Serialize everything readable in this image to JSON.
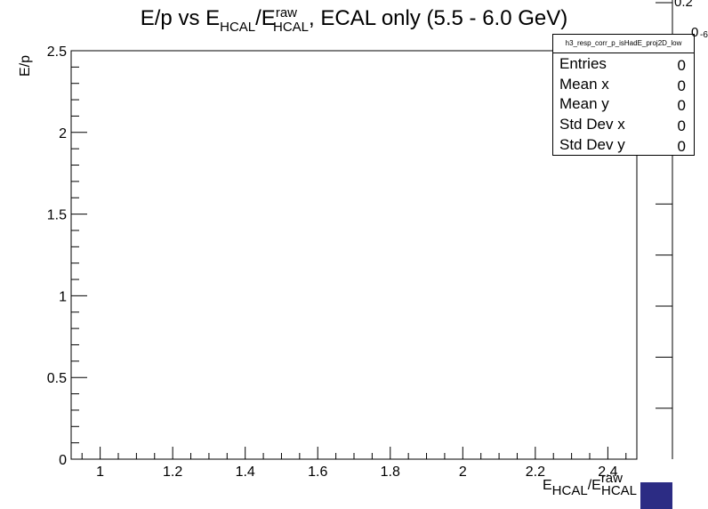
{
  "title": {
    "main": "E/p vs E",
    "sub1": "HCAL",
    "mid": "/E",
    "sup2": "raw",
    "sub2": "HCAL",
    "tail": ", ECAL only (5.5 - 6.0 GeV)"
  },
  "axis_labels": {
    "y": "E/p",
    "x_main": "E",
    "x_sub1": "HCAL",
    "x_mid": "/E",
    "x_sup": "raw",
    "x_sub2": "HCAL"
  },
  "stats_box": {
    "name": "h3_resp_corr_p_isHadE_proj2D_low",
    "rows": [
      {
        "key": "Entries",
        "value": "0"
      },
      {
        "key": "Mean x",
        "value": "0"
      },
      {
        "key": "Mean y",
        "value": "0"
      },
      {
        "key": "Std Dev x",
        "value": "0"
      },
      {
        "key": "Std Dev y",
        "value": "0"
      }
    ]
  },
  "palette": {
    "top_label": "0.2",
    "second_label": "0",
    "exponent": "-6",
    "color": "#2c2c84"
  },
  "chart_data": {
    "type": "heatmap",
    "title": "E/p vs E_HCAL/E^raw_HCAL, ECAL only (5.5 - 6.0 GeV)",
    "xlabel": "E_HCAL/E^raw_HCAL",
    "ylabel": "E/p",
    "xlim": [
      0.92,
      2.48
    ],
    "ylim": [
      0,
      2.5
    ],
    "x_ticks": [
      1,
      1.2,
      1.4,
      1.6,
      1.8,
      2,
      2.2,
      2.4
    ],
    "x_tick_labels": [
      "1",
      "1.2",
      "1.4",
      "1.6",
      "1.8",
      "2",
      "2.2",
      "2.4"
    ],
    "y_ticks": [
      0,
      0.5,
      1,
      1.5,
      2,
      2.5
    ],
    "y_tick_labels": [
      "0",
      "0.5",
      "1",
      "1.5",
      "2",
      "2.5"
    ],
    "entries": 0,
    "values": []
  }
}
